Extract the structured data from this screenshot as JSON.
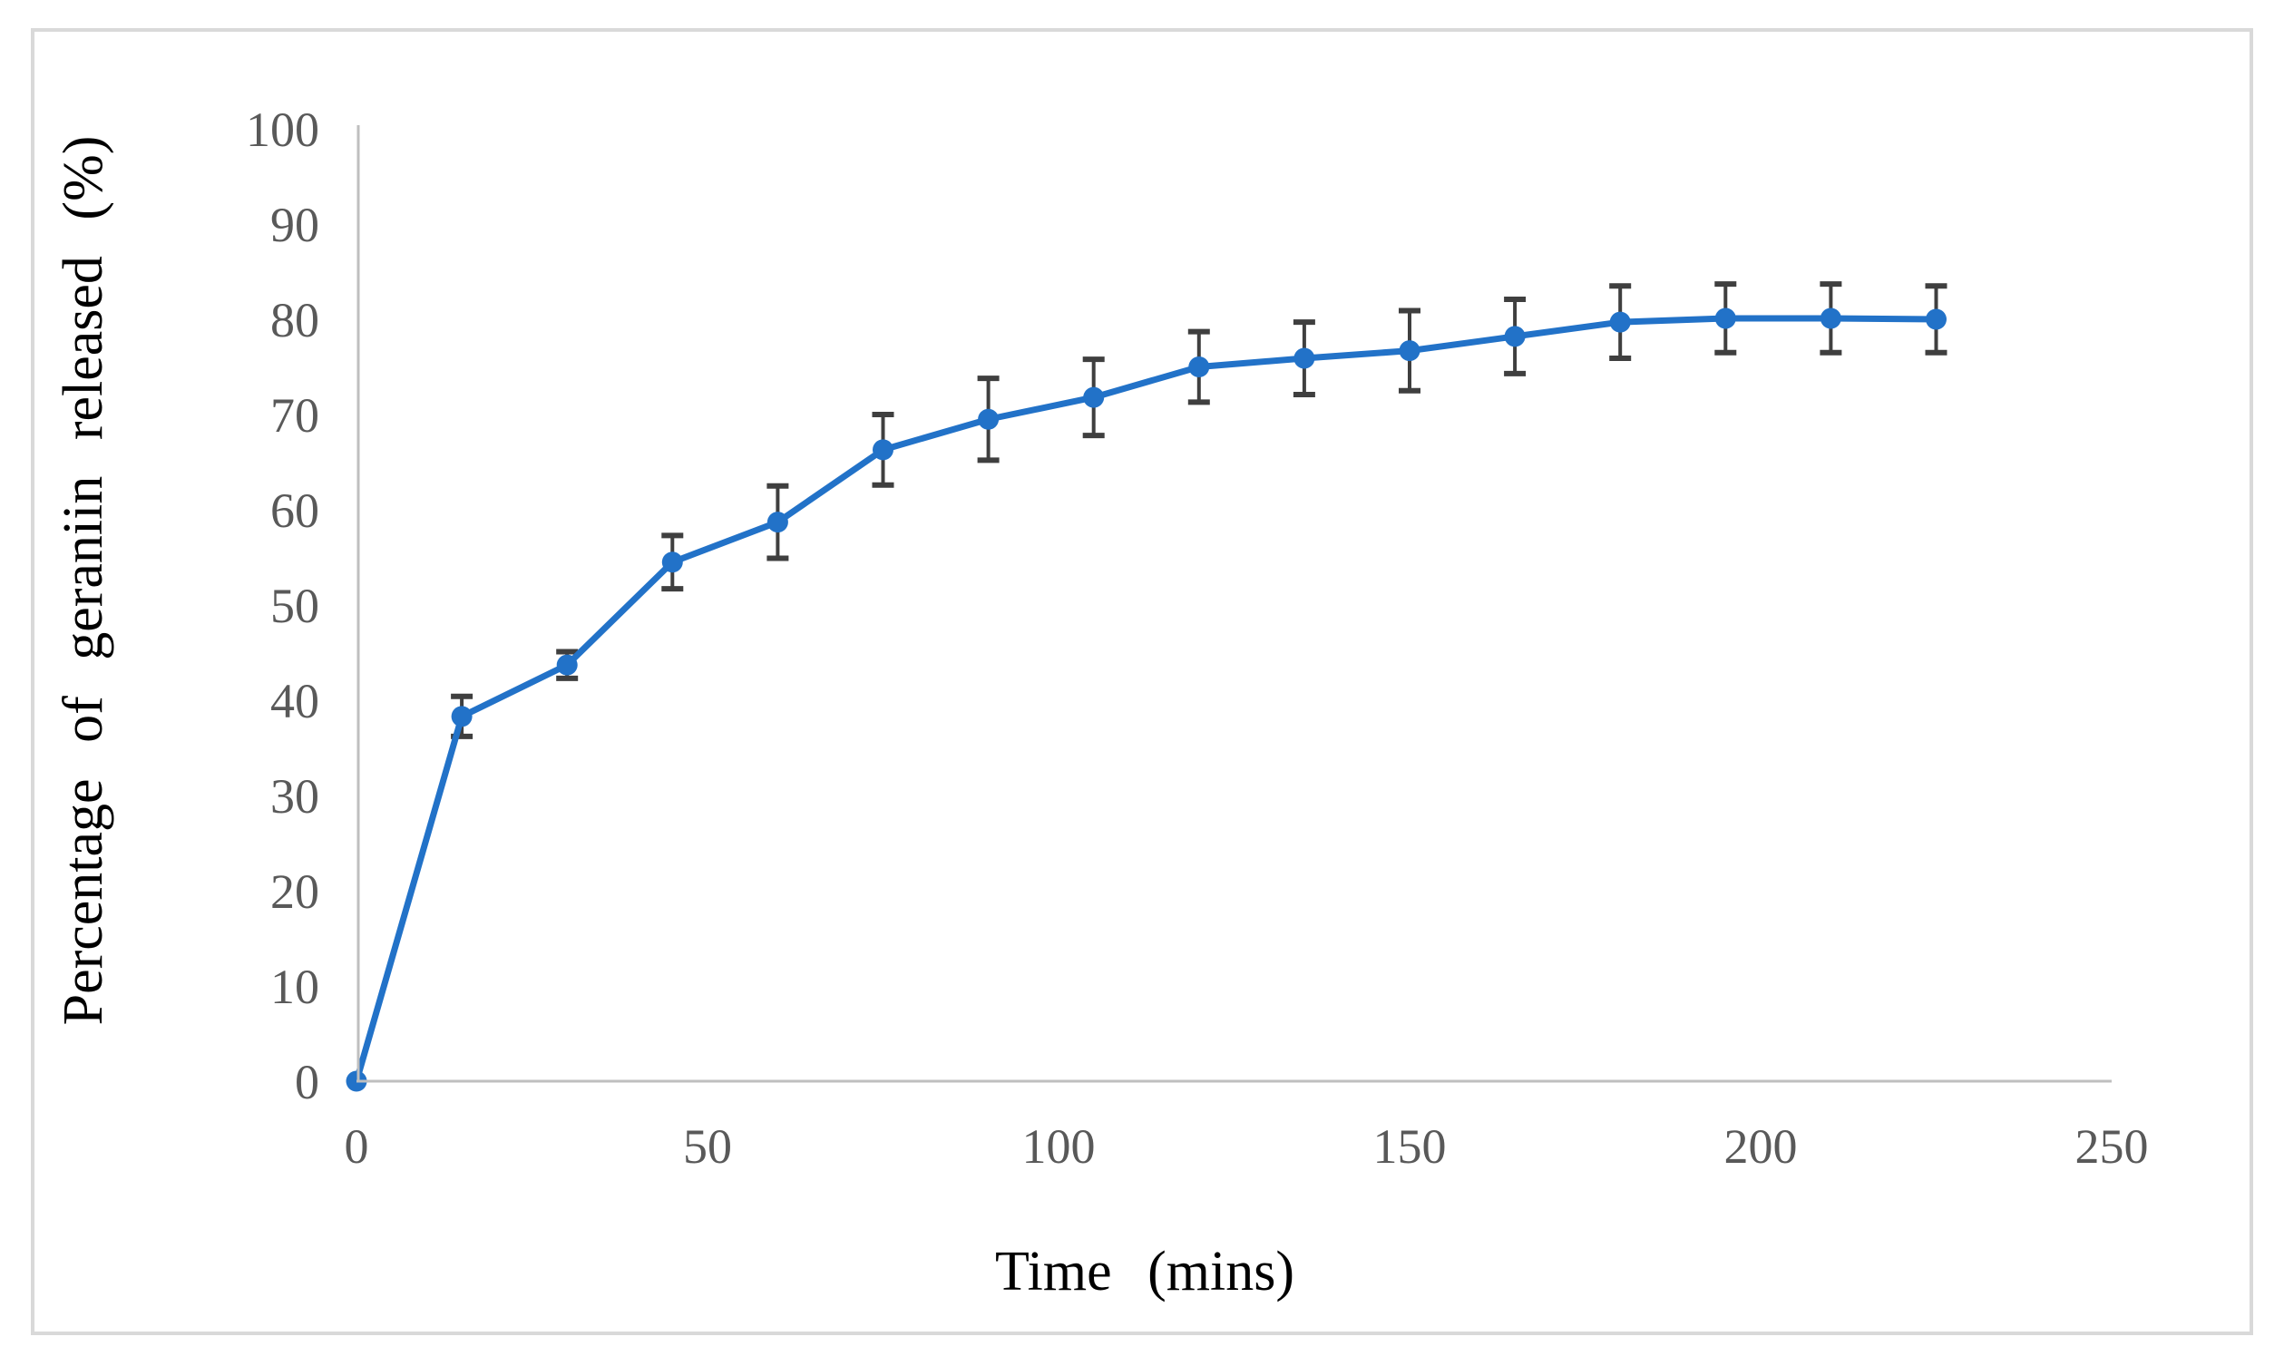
{
  "figure": {
    "background_color": "#ffffff",
    "border_color": "#d9d9d9"
  },
  "chart_data": {
    "type": "line",
    "title": "",
    "xlabel": "Time (mins)",
    "ylabel": "Percentage of geraniin released (%)",
    "x": [
      0,
      15,
      30,
      45,
      60,
      75,
      90,
      105,
      120,
      135,
      150,
      165,
      180,
      195,
      210,
      225
    ],
    "series": [
      {
        "name": "Percentage of geraniin released",
        "values": [
          0,
          38.3,
          43.7,
          54.5,
          58.7,
          66.3,
          69.5,
          71.8,
          75.0,
          75.9,
          76.7,
          78.2,
          79.7,
          80.1,
          80.1,
          80.0
        ],
        "errors": [
          0,
          2.1,
          1.4,
          2.8,
          3.8,
          3.7,
          4.3,
          4.0,
          3.7,
          3.8,
          4.2,
          3.9,
          3.8,
          3.6,
          3.6,
          3.5
        ]
      }
    ],
    "xlim": [
      0,
      250
    ],
    "ylim": [
      0,
      100
    ],
    "x_ticks": [
      0,
      50,
      100,
      150,
      200,
      250
    ],
    "y_ticks": [
      0,
      10,
      20,
      30,
      40,
      50,
      60,
      70,
      80,
      90,
      100
    ],
    "grid": false,
    "legend": false,
    "marker": "circle",
    "line_color": "#2272c8",
    "marker_color": "#2272c8",
    "error_bar_color": "#3f3f3f",
    "axis_line_color": "#bfbfbf",
    "tick_label_color": "#595959",
    "axis_title_color": "#000000"
  }
}
